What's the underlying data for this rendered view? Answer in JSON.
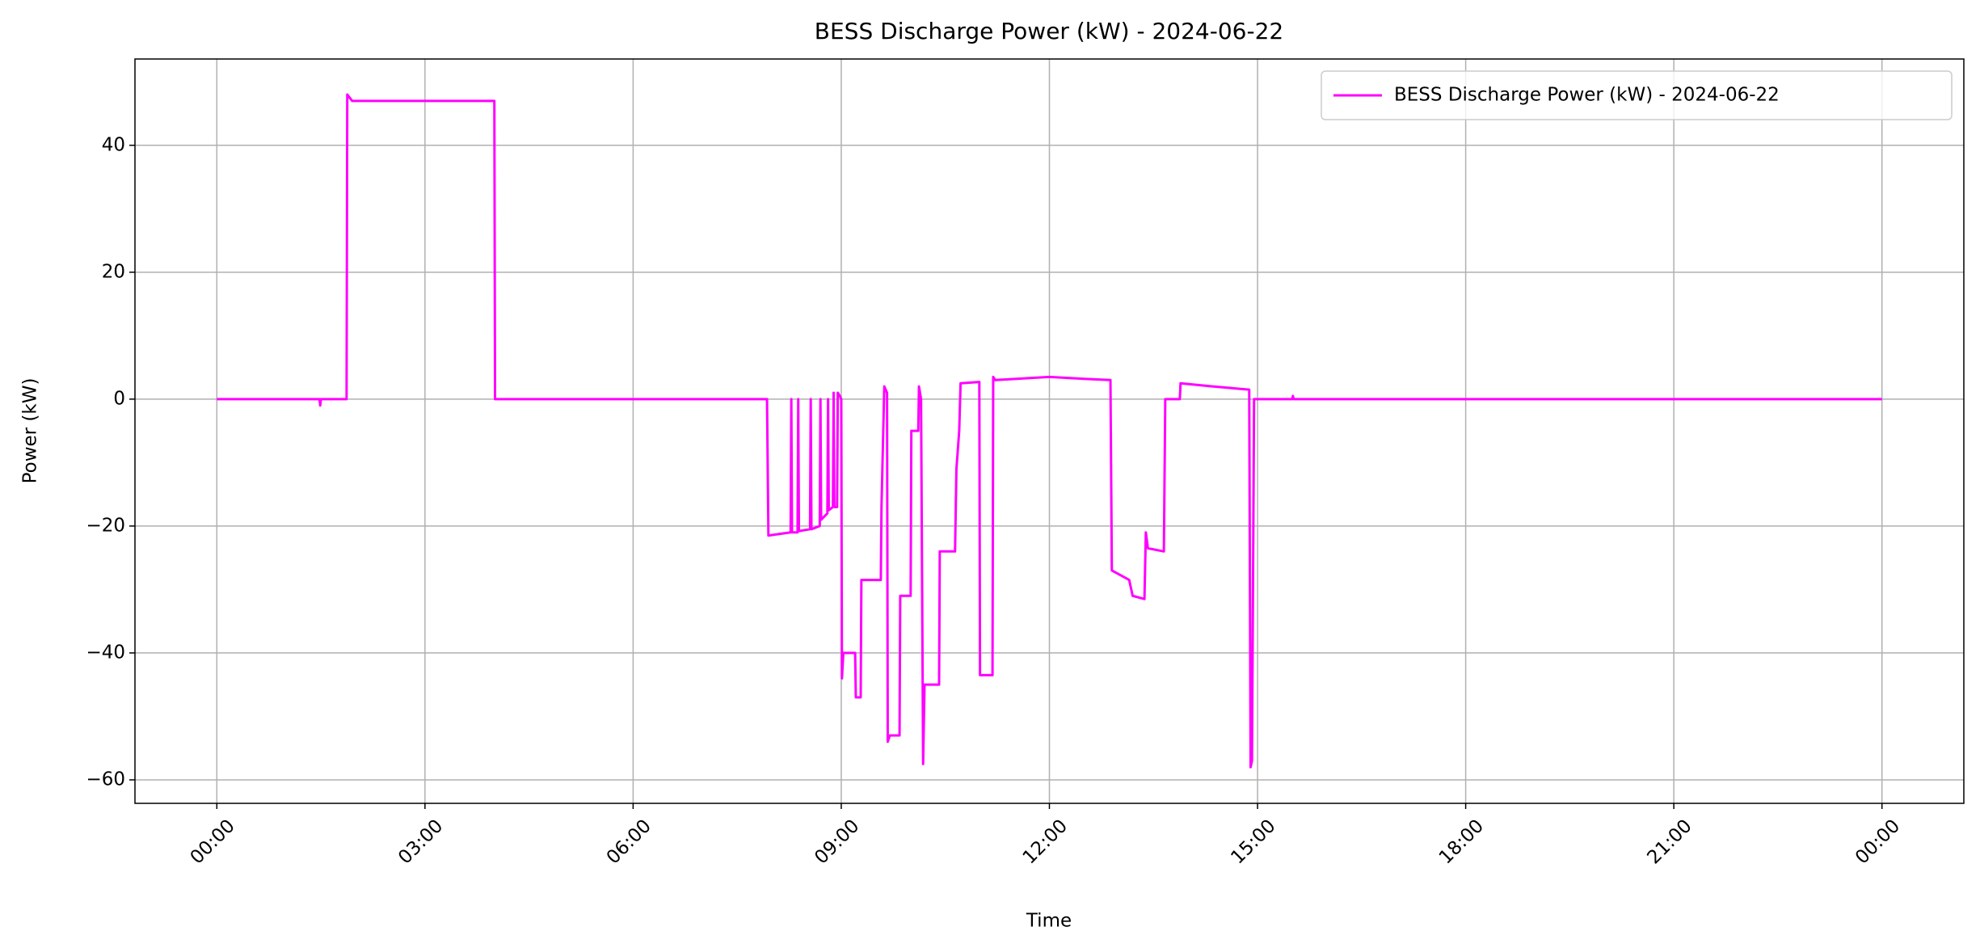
{
  "chart_data": {
    "type": "line",
    "title": "BESS Discharge Power (kW) - 2024-06-22",
    "x_label": "Time",
    "y_label": "Power (kW)",
    "x": [
      0,
      1.48,
      1.49,
      1.5,
      1.87,
      1.88,
      1.95,
      3.0,
      4.0,
      4.01,
      7.93,
      7.95,
      8.27,
      8.28,
      8.29,
      8.37,
      8.38,
      8.39,
      8.55,
      8.56,
      8.57,
      8.69,
      8.7,
      8.71,
      8.8,
      8.81,
      8.82,
      8.88,
      8.89,
      8.9,
      8.94,
      8.95,
      8.98,
      9.0,
      9.01,
      9.03,
      9.2,
      9.21,
      9.28,
      9.29,
      9.57,
      9.58,
      9.62,
      9.66,
      9.67,
      9.7,
      9.84,
      9.85,
      10.0,
      10.01,
      10.11,
      10.12,
      10.15,
      10.18,
      10.2,
      10.41,
      10.42,
      10.64,
      10.66,
      10.7,
      10.72,
      10.99,
      11.0,
      11.18,
      11.19,
      11.22,
      12.0,
      12.5,
      12.88,
      12.9,
      13.15,
      13.2,
      13.37,
      13.39,
      13.42,
      13.65,
      13.67,
      13.88,
      13.89,
      14.35,
      14.88,
      14.9,
      14.92,
      14.95,
      15.5,
      15.51,
      15.52,
      24
    ],
    "series": [
      {
        "name": "BESS Discharge Power (kW) - 2024-06-22",
        "color": "#ff00ff",
        "values": [
          0,
          0,
          -1,
          0,
          0,
          48,
          47,
          47,
          47,
          0,
          0,
          -21.5,
          -21,
          0,
          -21,
          -21,
          0,
          -20.8,
          -20.5,
          0,
          -20.5,
          -20,
          0,
          -19,
          -18,
          0,
          -17.5,
          -17,
          1,
          -17,
          -17,
          1,
          0.5,
          0,
          -44,
          -40,
          -40,
          -47,
          -47,
          -28.5,
          -28.5,
          -17,
          2,
          1,
          -54,
          -53,
          -53,
          -31,
          -31,
          -5,
          -5,
          2,
          0,
          -57.5,
          -45,
          -45,
          -24,
          -24,
          -11,
          -5,
          2.5,
          2.7,
          -43.5,
          -43.5,
          3.5,
          3,
          3.5,
          3.2,
          3,
          -27,
          -28.5,
          -31,
          -31.5,
          -21,
          -23.5,
          -24,
          0,
          0,
          2.5,
          2,
          1.5,
          -58,
          -57,
          0,
          0,
          0.5,
          0,
          0
        ]
      }
    ],
    "xlim": [
      -1.18,
      25.18
    ],
    "xticks": [
      {
        "value": 0,
        "label": "00:00"
      },
      {
        "value": 3,
        "label": "03:00"
      },
      {
        "value": 6,
        "label": "06:00"
      },
      {
        "value": 9,
        "label": "09:00"
      },
      {
        "value": 12,
        "label": "12:00"
      },
      {
        "value": 15,
        "label": "15:00"
      },
      {
        "value": 18,
        "label": "18:00"
      },
      {
        "value": 21,
        "label": "21:00"
      },
      {
        "value": 24,
        "label": "00:00"
      }
    ],
    "ylim": [
      -63.7,
      53.6
    ],
    "yticks": [
      {
        "value": -60,
        "label": "−60"
      },
      {
        "value": -40,
        "label": "−40"
      },
      {
        "value": -20,
        "label": "−20"
      },
      0,
      20,
      40
    ],
    "grid": true,
    "legend": "upper right"
  }
}
